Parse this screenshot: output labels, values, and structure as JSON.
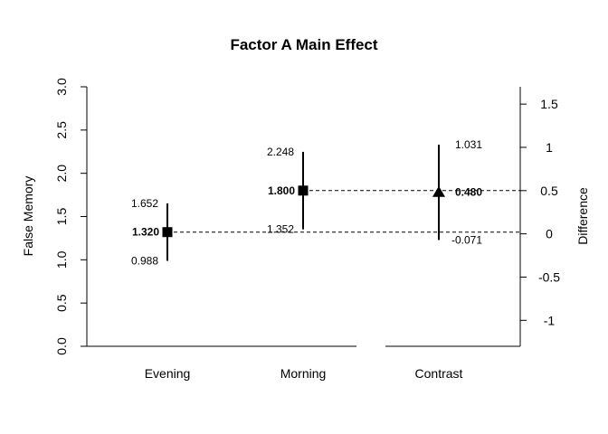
{
  "chart_data": {
    "type": "errorbar",
    "title": "Factor A Main Effect",
    "ylabel": "False Memory",
    "y2label": "Difference",
    "ylim": [
      0,
      3.0
    ],
    "y2lim": [
      -1.3,
      1.7
    ],
    "yticks": [
      "0.0",
      "0.5",
      "1.0",
      "1.5",
      "2.0",
      "2.5",
      "3.0"
    ],
    "y2ticks": [
      "-1",
      "-0.5",
      "0",
      "0.5",
      "1",
      "1.5"
    ],
    "categories": [
      "Evening",
      "Morning",
      "Contrast"
    ],
    "points": [
      {
        "category": "Evening",
        "estimate": 1.32,
        "lower": 0.988,
        "upper": 1.652,
        "estimate_label": "1.320",
        "lower_label": "0.988",
        "upper_label": "1.652"
      },
      {
        "category": "Morning",
        "estimate": 1.8,
        "lower": 1.352,
        "upper": 2.248,
        "estimate_label": "1.800",
        "lower_label": "1.352",
        "upper_label": "2.248"
      }
    ],
    "contrast": {
      "category": "Contrast",
      "estimate": 0.48,
      "lower": -0.071,
      "upper": 1.031,
      "estimate_label": "0.480",
      "lower_label": "-0.071",
      "upper_label": "1.031"
    }
  }
}
